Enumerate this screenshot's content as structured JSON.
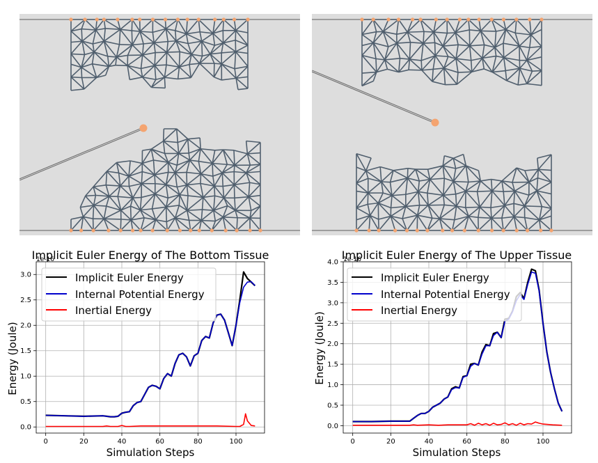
{
  "colors": {
    "panel_bg": "#dddddd",
    "mesh_edge": "#4f5e6d",
    "anchor_node": "#f4a470",
    "tool": "#888888",
    "series_total": "#000000",
    "series_potential": "#0000cc",
    "series_inertial": "#ff0000"
  },
  "chart_data": [
    {
      "type": "line",
      "title": "Implicit Euler Energy of The Bottom Tissue",
      "xlabel": "Simulation Steps",
      "ylabel": "Energy (Joule)",
      "scale_label": "1e-16",
      "xlim": [
        -5,
        115
      ],
      "ylim": [
        -0.12,
        3.25
      ],
      "xticks": [
        0,
        20,
        40,
        60,
        80,
        100
      ],
      "yticks": [
        0.0,
        0.5,
        1.0,
        1.5,
        2.0,
        2.5,
        3.0
      ],
      "xtick_labels": [
        "0",
        "20",
        "40",
        "60",
        "80",
        "100"
      ],
      "ytick_labels": [
        "0.0",
        "0.5",
        "1.0",
        "1.5",
        "2.0",
        "2.5",
        "3.0"
      ],
      "grid": true,
      "legend_placement": "upper-left",
      "series": [
        {
          "name": "Implicit Euler Energy",
          "x": [
            0,
            10,
            20,
            30,
            32,
            34,
            36,
            38,
            40,
            42,
            44,
            46,
            48,
            50,
            52,
            54,
            56,
            58,
            60,
            62,
            64,
            66,
            68,
            70,
            72,
            74,
            76,
            78,
            80,
            82,
            84,
            86,
            88,
            90,
            92,
            94,
            96,
            98,
            100,
            102,
            104,
            106,
            108,
            110
          ],
          "y": [
            0.23,
            0.22,
            0.21,
            0.22,
            0.21,
            0.2,
            0.2,
            0.21,
            0.27,
            0.29,
            0.3,
            0.42,
            0.48,
            0.5,
            0.64,
            0.78,
            0.82,
            0.8,
            0.75,
            0.95,
            1.05,
            1.0,
            1.25,
            1.42,
            1.45,
            1.38,
            1.2,
            1.4,
            1.45,
            1.7,
            1.78,
            1.75,
            2.05,
            2.2,
            2.22,
            2.1,
            1.85,
            1.6,
            2.0,
            2.5,
            3.05,
            2.92,
            2.85,
            2.78
          ]
        },
        {
          "name": "Internal Potential Energy",
          "x": [
            0,
            10,
            20,
            30,
            32,
            34,
            36,
            38,
            40,
            42,
            44,
            46,
            48,
            50,
            52,
            54,
            56,
            58,
            60,
            62,
            64,
            66,
            68,
            70,
            72,
            74,
            76,
            78,
            80,
            82,
            84,
            86,
            88,
            90,
            92,
            94,
            96,
            98,
            100,
            102,
            104,
            106,
            108,
            110
          ],
          "y": [
            0.23,
            0.22,
            0.21,
            0.22,
            0.21,
            0.2,
            0.2,
            0.21,
            0.27,
            0.29,
            0.3,
            0.42,
            0.48,
            0.5,
            0.64,
            0.78,
            0.82,
            0.8,
            0.75,
            0.95,
            1.05,
            1.0,
            1.25,
            1.42,
            1.45,
            1.38,
            1.2,
            1.4,
            1.45,
            1.7,
            1.78,
            1.75,
            2.05,
            2.2,
            2.22,
            2.1,
            1.85,
            1.6,
            2.0,
            2.45,
            2.75,
            2.85,
            2.86,
            2.78
          ]
        },
        {
          "name": "Inertial Energy",
          "x": [
            0,
            10,
            20,
            30,
            32,
            34,
            36,
            38,
            40,
            42,
            44,
            50,
            60,
            70,
            80,
            90,
            100,
            102,
            104,
            105,
            106,
            108,
            110
          ],
          "y": [
            0.01,
            0.01,
            0.01,
            0.01,
            0.02,
            0.01,
            0.01,
            0.01,
            0.03,
            0.01,
            0.01,
            0.02,
            0.02,
            0.02,
            0.02,
            0.02,
            0.01,
            0.01,
            0.05,
            0.26,
            0.12,
            0.03,
            0.02
          ]
        }
      ]
    },
    {
      "type": "line",
      "title": "Implicit Euler Energy of The Upper Tissue",
      "xlabel": "Simulation Steps",
      "ylabel": "Energy (Joule)",
      "scale_label": "1e-16",
      "xlim": [
        -5,
        115
      ],
      "ylim": [
        -0.18,
        4.0
      ],
      "xticks": [
        0,
        20,
        40,
        60,
        80,
        100
      ],
      "yticks": [
        0.0,
        0.5,
        1.0,
        1.5,
        2.0,
        2.5,
        3.0,
        3.5,
        4.0
      ],
      "xtick_labels": [
        "0",
        "20",
        "40",
        "60",
        "80",
        "100"
      ],
      "ytick_labels": [
        "0.0",
        "0.5",
        "1.0",
        "1.5",
        "2.0",
        "2.5",
        "3.0",
        "3.5",
        "4.0"
      ],
      "grid": true,
      "legend_placement": "upper-left",
      "series": [
        {
          "name": "Implicit Euler Energy",
          "x": [
            0,
            10,
            20,
            30,
            32,
            34,
            36,
            38,
            40,
            42,
            44,
            46,
            48,
            50,
            52,
            54,
            56,
            58,
            60,
            62,
            64,
            66,
            68,
            70,
            72,
            74,
            76,
            78,
            80,
            82,
            84,
            86,
            88,
            90,
            92,
            94,
            96,
            98,
            100,
            102,
            104,
            106,
            108,
            110
          ],
          "y": [
            0.1,
            0.1,
            0.11,
            0.11,
            0.18,
            0.25,
            0.3,
            0.3,
            0.35,
            0.45,
            0.5,
            0.55,
            0.65,
            0.7,
            0.9,
            0.95,
            0.92,
            1.2,
            1.22,
            1.5,
            1.52,
            1.48,
            1.8,
            1.98,
            1.95,
            2.25,
            2.28,
            2.15,
            2.6,
            2.62,
            2.8,
            3.15,
            3.25,
            3.1,
            3.5,
            3.82,
            3.78,
            3.3,
            2.5,
            1.8,
            1.3,
            0.9,
            0.55,
            0.35
          ]
        },
        {
          "name": "Internal Potential Energy",
          "x": [
            0,
            10,
            20,
            30,
            32,
            34,
            36,
            38,
            40,
            42,
            44,
            46,
            48,
            50,
            52,
            54,
            56,
            58,
            60,
            62,
            64,
            66,
            68,
            70,
            72,
            74,
            76,
            78,
            80,
            82,
            84,
            86,
            88,
            90,
            92,
            94,
            96,
            98,
            100,
            102,
            104,
            106,
            108,
            110
          ],
          "y": [
            0.1,
            0.1,
            0.11,
            0.11,
            0.18,
            0.25,
            0.3,
            0.3,
            0.35,
            0.45,
            0.5,
            0.55,
            0.65,
            0.7,
            0.88,
            0.93,
            0.92,
            1.18,
            1.22,
            1.45,
            1.52,
            1.48,
            1.75,
            1.95,
            1.95,
            2.2,
            2.28,
            2.15,
            2.55,
            2.6,
            2.78,
            3.05,
            3.2,
            3.08,
            3.45,
            3.75,
            3.72,
            3.28,
            2.5,
            1.8,
            1.3,
            0.9,
            0.55,
            0.35
          ]
        },
        {
          "name": "Inertial Energy",
          "x": [
            0,
            10,
            20,
            30,
            32,
            34,
            40,
            45,
            50,
            55,
            60,
            62,
            64,
            66,
            68,
            70,
            72,
            74,
            76,
            78,
            80,
            82,
            84,
            86,
            88,
            90,
            92,
            94,
            96,
            98,
            100,
            105,
            110
          ],
          "y": [
            0.01,
            0.01,
            0.01,
            0.01,
            0.02,
            0.01,
            0.02,
            0.01,
            0.02,
            0.02,
            0.02,
            0.05,
            0.01,
            0.06,
            0.02,
            0.05,
            0.01,
            0.06,
            0.02,
            0.03,
            0.07,
            0.02,
            0.05,
            0.01,
            0.06,
            0.02,
            0.05,
            0.04,
            0.09,
            0.06,
            0.04,
            0.02,
            0.01
          ]
        }
      ]
    }
  ]
}
